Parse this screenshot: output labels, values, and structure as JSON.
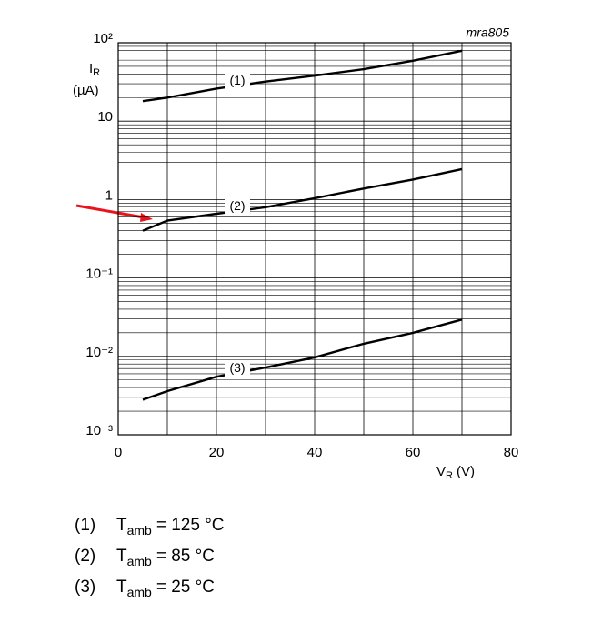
{
  "chart_data": {
    "type": "line",
    "annotation": "mra805",
    "ylabel_symbol": "I",
    "ylabel_subscript": "R",
    "ylabel_unit": "(µA)",
    "xlabel_symbol": "V",
    "xlabel_subscript": "R",
    "xlabel_unit": "(V)",
    "log_y": true,
    "grid": true,
    "xlim": [
      0,
      80
    ],
    "xticks": [
      0,
      20,
      40,
      60,
      80
    ],
    "ylim": [
      0.001,
      100
    ],
    "yticks": [
      {
        "value": 0.001,
        "label": "10⁻³"
      },
      {
        "value": 0.01,
        "label": "10⁻²"
      },
      {
        "value": 0.1,
        "label": "10⁻¹"
      },
      1,
      10,
      {
        "value": 100,
        "label": "10²"
      }
    ],
    "x": [
      5,
      10,
      20,
      30,
      40,
      50,
      60,
      70
    ],
    "series": [
      {
        "name": "(1)",
        "color": "#000000",
        "condition_symbol": "T",
        "condition_subscript": "amb",
        "condition_value": "= 125 °C",
        "values": [
          18,
          20,
          26,
          32,
          38,
          46,
          59,
          79
        ]
      },
      {
        "name": "(2)",
        "color": "#000000",
        "condition_symbol": "T",
        "condition_subscript": "amb",
        "condition_value": "= 85 °C",
        "values": [
          0.4,
          0.54,
          0.66,
          0.8,
          1.04,
          1.38,
          1.8,
          2.45
        ]
      },
      {
        "name": "(3)",
        "color": "#000000",
        "condition_symbol": "T",
        "condition_subscript": "amb",
        "condition_value": "= 25 °C",
        "values": [
          0.0028,
          0.0036,
          0.0055,
          0.0072,
          0.0097,
          0.0145,
          0.02,
          0.0295
        ]
      }
    ]
  }
}
